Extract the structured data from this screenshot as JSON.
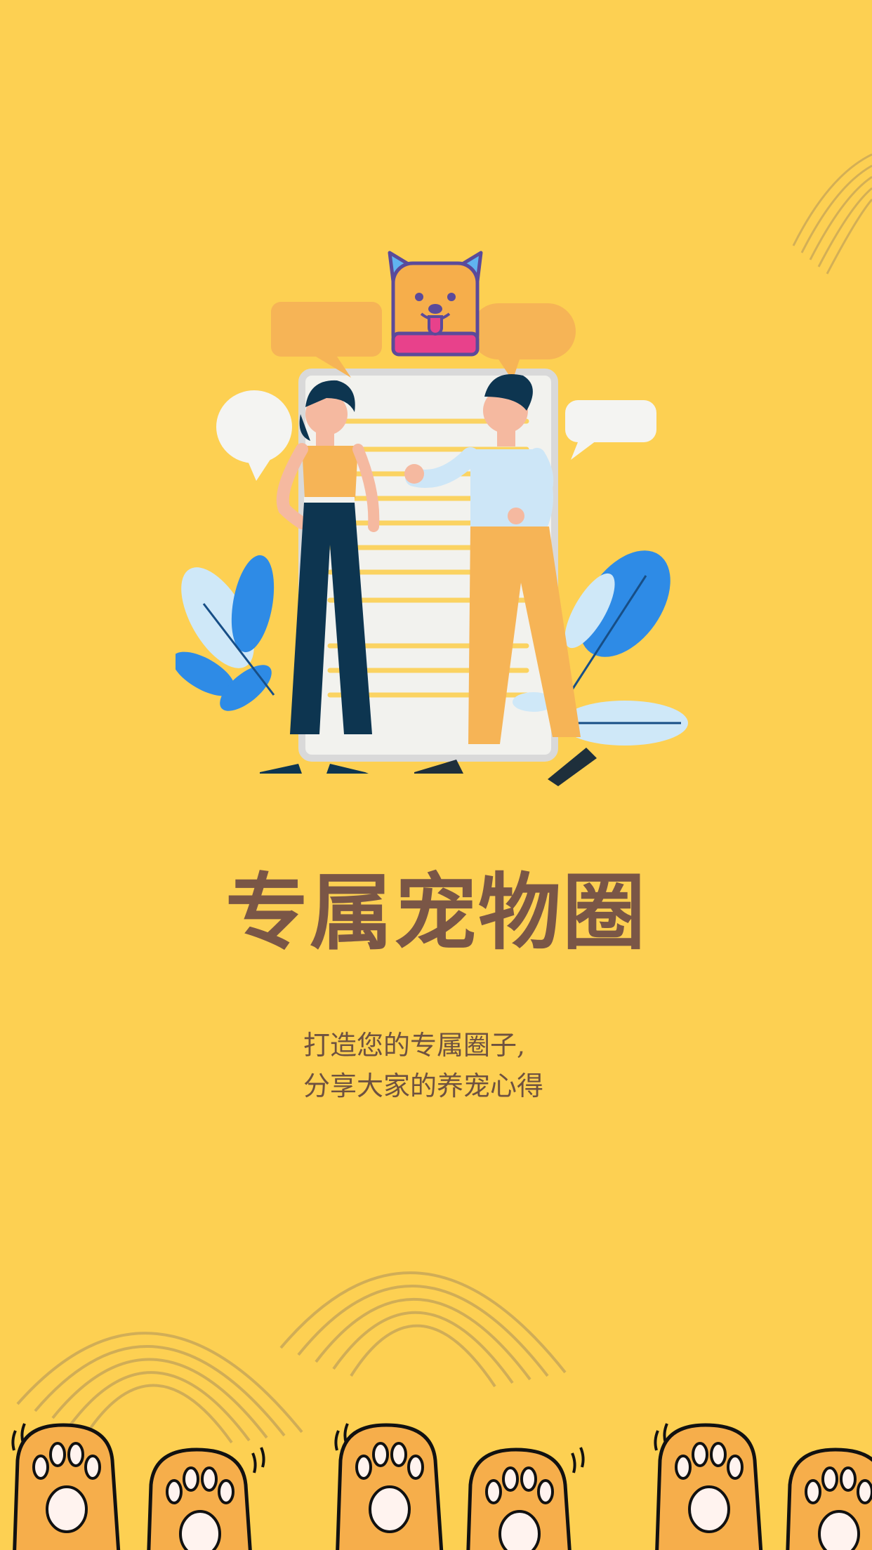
{
  "onboarding": {
    "title": "专属宠物圈",
    "subtitle_line1": "打造您的专属圈子,",
    "subtitle_line2": "分享大家的养宠心得"
  },
  "icons": {
    "mascot": "dog-face-icon",
    "paw": "cat-paw-icon",
    "arcs": "rainbow-arcs-decoration"
  },
  "colors": {
    "background": "#FDD052",
    "title": "#7A5646",
    "subtitle": "#6E5140",
    "paw_orange": "#F6AE4B",
    "leaf_blue": "#2E8BE6"
  }
}
